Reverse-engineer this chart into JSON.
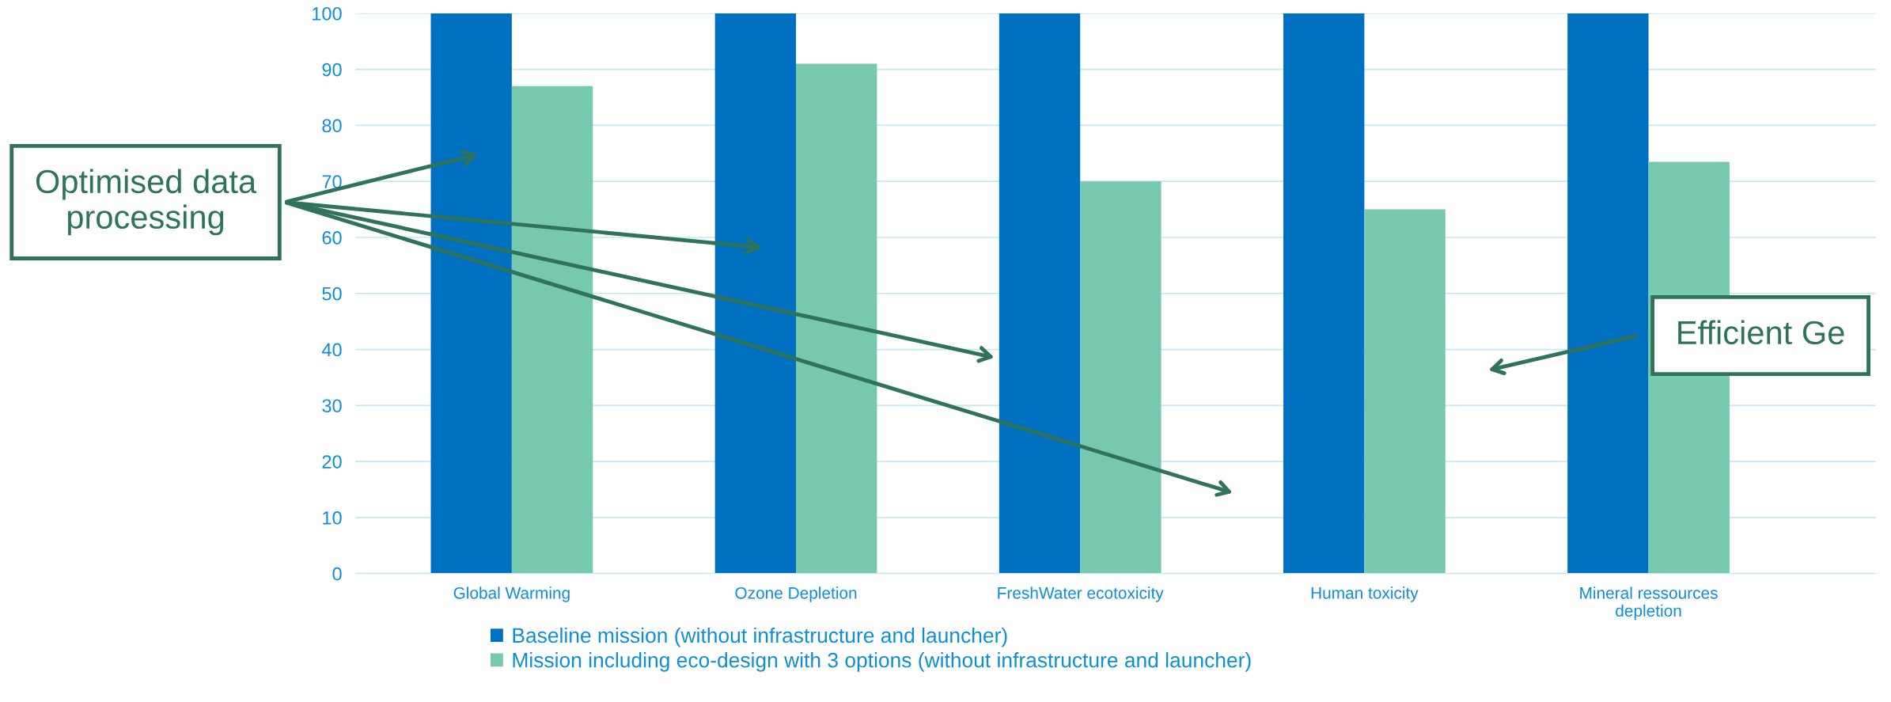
{
  "chart_data": {
    "type": "bar",
    "categories": [
      "Global Warming",
      "Ozone Depletion",
      "FreshWater ecotoxicity",
      "Human toxicity",
      "Mineral ressources\ndepletion"
    ],
    "series": [
      {
        "name": "Baseline mission (without infrastructure and launcher)",
        "color": "#0070c0",
        "values": [
          100,
          100,
          100,
          100,
          100
        ]
      },
      {
        "name": "Mission including eco-design with 3 options (without infrastructure and launcher)",
        "color": "#76c8ae",
        "values": [
          87,
          91,
          70,
          65,
          73.5
        ]
      }
    ],
    "ylim": [
      0,
      100
    ],
    "yticks": [
      0,
      10,
      20,
      30,
      40,
      50,
      60,
      70,
      80,
      90,
      100
    ],
    "grid": "y",
    "legend": "bottom",
    "annotations": [
      "Optimised data\nprocessing",
      "Efficient Ge"
    ]
  }
}
